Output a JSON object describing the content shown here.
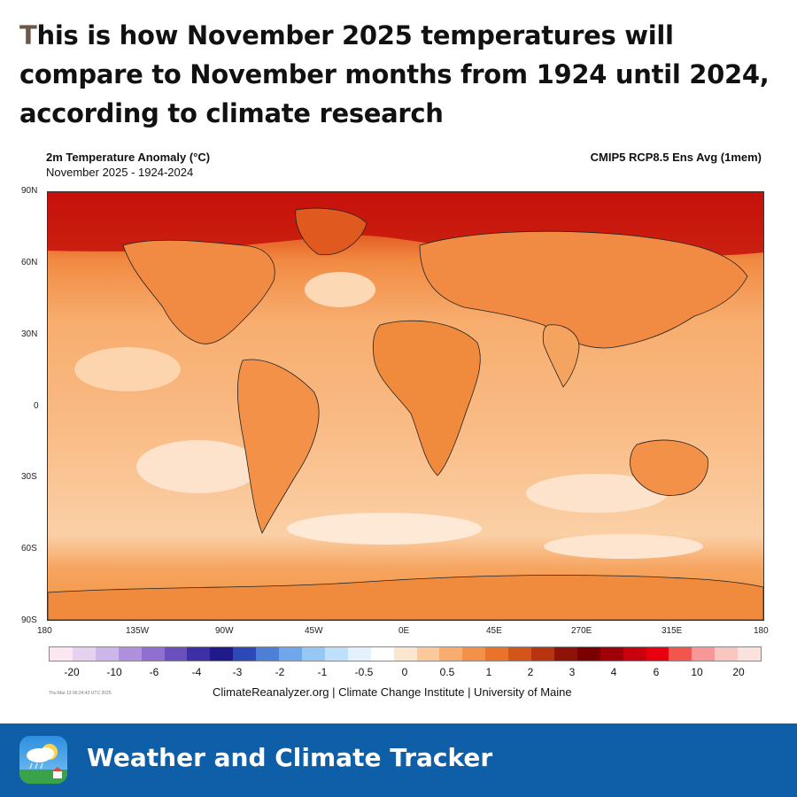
{
  "headline": {
    "first_letter": "T",
    "line1_rest": "his is how November 2025 temperatures will",
    "line2": "compare to November months from 1924 until 2024,",
    "line3": "according to climate research"
  },
  "map": {
    "title": "2m Temperature Anomaly (°C)",
    "subtitle": "November 2025 - 1924-2024",
    "model": "CMIP5 RCP8.5 Ens Avg (1mem)",
    "lat_labels": [
      "90N",
      "60N",
      "30N",
      "0",
      "30S",
      "60S",
      "90S"
    ],
    "lon_labels": [
      "180",
      "135W",
      "90W",
      "45W",
      "0E",
      "45E",
      "270E",
      "315E",
      "180"
    ]
  },
  "colorbar": {
    "colors": [
      "#fbe6f1",
      "#e6d2f0",
      "#cdb6ea",
      "#b08fdc",
      "#8f6fd0",
      "#6a50bd",
      "#3d2fa6",
      "#1f1a8c",
      "#2d49b8",
      "#4d7fd6",
      "#6fa7ea",
      "#97c8f4",
      "#bfe0fa",
      "#e2f1fc",
      "#ffffff",
      "#fde6cf",
      "#fbc99b",
      "#f8ad6e",
      "#f39148",
      "#ea732a",
      "#d4551a",
      "#b8330f",
      "#8f1207",
      "#7a0000",
      "#a00008",
      "#c9000d",
      "#e8000f",
      "#f1554e",
      "#f79797",
      "#f9c6c0",
      "#fbe2dd"
    ],
    "tick_labels": [
      "-20",
      "-10",
      "-6",
      "-4",
      "-3",
      "-2",
      "-1",
      "-0.5",
      "0",
      "0.5",
      "1",
      "2",
      "3",
      "4",
      "6",
      "10",
      "20"
    ]
  },
  "timestamp": "Thu Mar 13 06:24:42 UTC 2025",
  "credits": "ClimateReanalyzer.org | Climate Change Institute | University of Maine",
  "footer": {
    "title": "Weather and Climate Tracker",
    "background": "#0f5ea8"
  }
}
